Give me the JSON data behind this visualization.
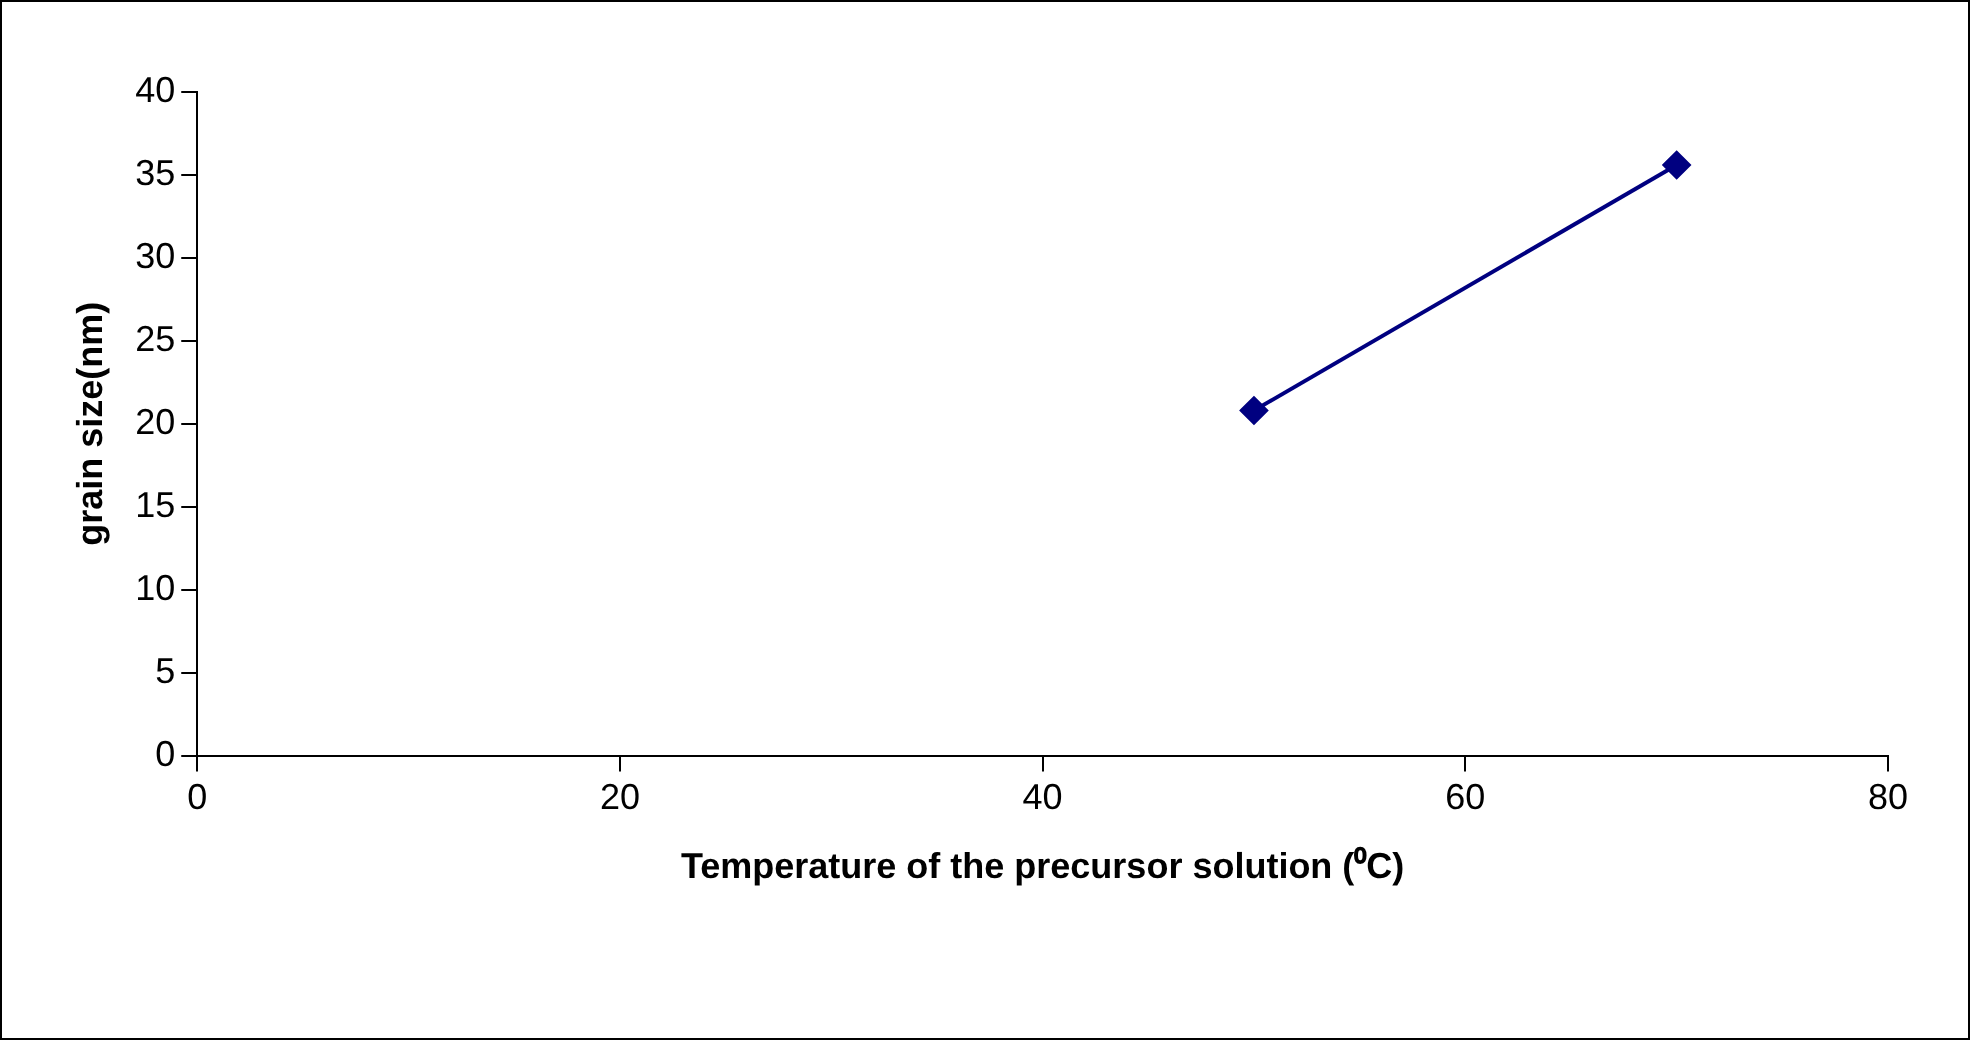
{
  "chart_data": {
    "type": "line",
    "xlabel": "Temperature of the precursor solution (⁰C)",
    "ylabel": "grain size(nm)",
    "x": [
      50,
      70
    ],
    "series": [
      {
        "color": "#000080",
        "values": [
          20.8,
          35.6
        ]
      }
    ],
    "xlim": [
      0,
      80
    ],
    "xticks": [
      0,
      20,
      40,
      60,
      80
    ],
    "ylim": [
      0,
      40
    ],
    "yticks": [
      0,
      5,
      10,
      15,
      20,
      25,
      30,
      35,
      40
    ],
    "grid": false,
    "legend": false,
    "marker": "diamond",
    "line_style": "solid"
  }
}
